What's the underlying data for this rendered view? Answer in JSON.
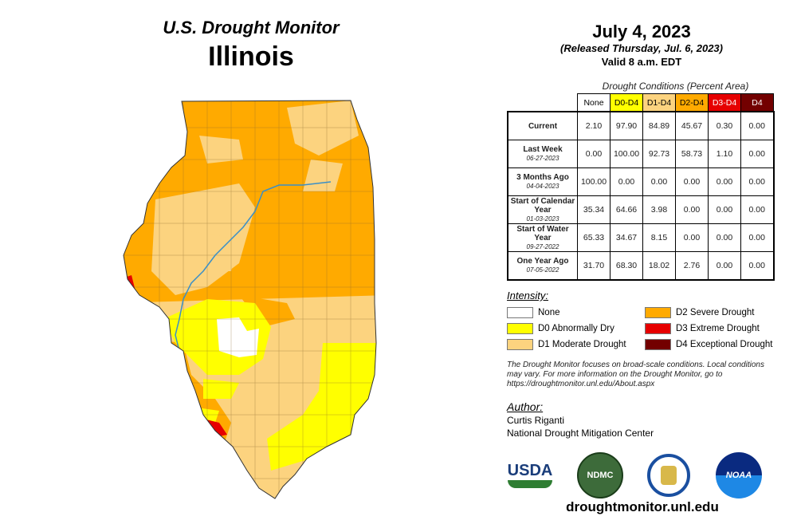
{
  "header": {
    "title": "U.S. Drought Monitor",
    "state": "Illinois"
  },
  "info": {
    "date": "July 4, 2023",
    "released": "(Released Thursday, Jul. 6, 2023)",
    "valid": "Valid 8 a.m. EDT"
  },
  "table": {
    "caption": "Drought Conditions (Percent Area)",
    "columns": [
      {
        "label": "None",
        "color": "#ffffff"
      },
      {
        "label": "D0-D4",
        "color": "#ffff00"
      },
      {
        "label": "D1-D4",
        "color": "#fcd37f"
      },
      {
        "label": "D2-D4",
        "color": "#ffaa00"
      },
      {
        "label": "D3-D4",
        "color": "#e60000"
      },
      {
        "label": "D4",
        "color": "#730000"
      }
    ],
    "rows": [
      {
        "label": "Current",
        "date": "",
        "values": [
          "2.10",
          "97.90",
          "84.89",
          "45.67",
          "0.30",
          "0.00"
        ]
      },
      {
        "label": "Last Week",
        "date": "06-27-2023",
        "values": [
          "0.00",
          "100.00",
          "92.73",
          "58.73",
          "1.10",
          "0.00"
        ]
      },
      {
        "label": "3 Months Ago",
        "date": "04-04-2023",
        "values": [
          "100.00",
          "0.00",
          "0.00",
          "0.00",
          "0.00",
          "0.00"
        ]
      },
      {
        "label": "Start of Calendar Year",
        "date": "01-03-2023",
        "values": [
          "35.34",
          "64.66",
          "3.98",
          "0.00",
          "0.00",
          "0.00"
        ]
      },
      {
        "label": "Start of Water Year",
        "date": "09-27-2022",
        "values": [
          "65.33",
          "34.67",
          "8.15",
          "0.00",
          "0.00",
          "0.00"
        ]
      },
      {
        "label": "One Year Ago",
        "date": "07-05-2022",
        "values": [
          "31.70",
          "68.30",
          "18.02",
          "2.76",
          "0.00",
          "0.00"
        ]
      }
    ]
  },
  "legend": {
    "title": "Intensity:",
    "items": [
      {
        "label": "None",
        "color": "#ffffff"
      },
      {
        "label": "D0 Abnormally Dry",
        "color": "#ffff00"
      },
      {
        "label": "D1 Moderate Drought",
        "color": "#fcd37f"
      },
      {
        "label": "D2 Severe Drought",
        "color": "#ffaa00"
      },
      {
        "label": "D3 Extreme Drought",
        "color": "#e60000"
      },
      {
        "label": "D4 Exceptional Drought",
        "color": "#730000"
      }
    ]
  },
  "note": "The Drought Monitor focuses on broad-scale conditions. Local conditions may vary. For more information on the Drought Monitor, go to https://droughtmonitor.unl.edu/About.aspx",
  "author": {
    "label": "Author:",
    "name": "Curtis Riganti",
    "org": "National Drought Mitigation Center"
  },
  "logos": {
    "usda": "USDA",
    "ndmc": "NDMC",
    "noaa": "NOAA"
  },
  "footer": {
    "website": "droughtmonitor.unl.edu"
  }
}
